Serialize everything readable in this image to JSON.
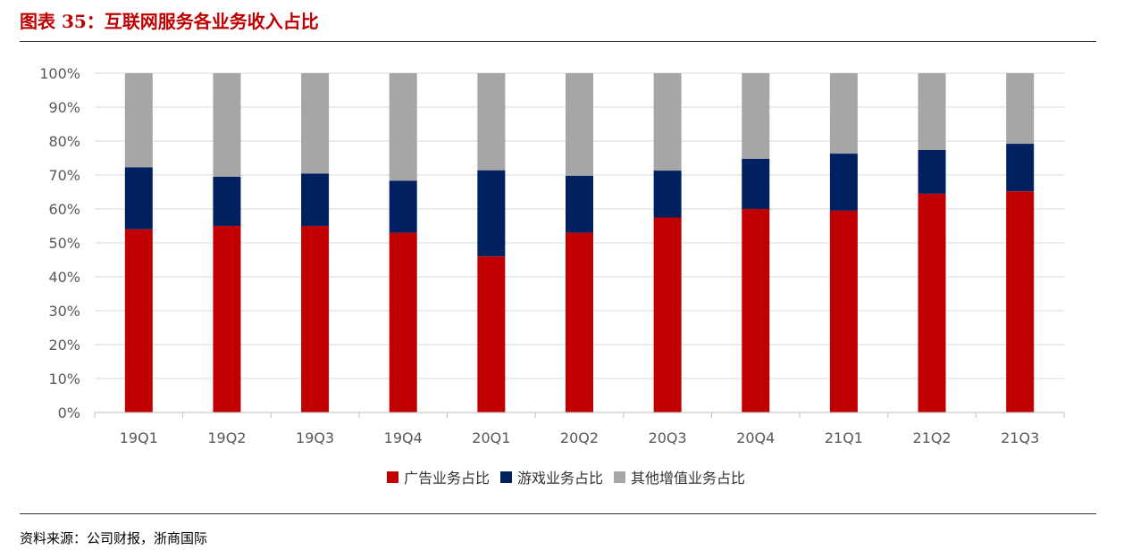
{
  "title": "图表 35：互联网服务各业务收入占比",
  "source": "资料来源：公司财报，浙商国际",
  "colors": {
    "ad": "#c00000",
    "game": "#002060",
    "other": "#a6a6a6",
    "grid": "#d9d9d9",
    "axis_text": "#595959"
  },
  "chart_data": {
    "type": "bar",
    "stacked": true,
    "categories": [
      "19Q1",
      "19Q2",
      "19Q3",
      "19Q4",
      "20Q1",
      "20Q2",
      "20Q3",
      "20Q4",
      "21Q1",
      "21Q2",
      "21Q3"
    ],
    "series": [
      {
        "name": "广告业务占比",
        "color": "#c00000",
        "values": [
          54,
          55,
          55,
          53,
          46,
          53,
          57.5,
          60,
          59.5,
          64.5,
          65.2
        ]
      },
      {
        "name": "游戏业务占比",
        "color": "#002060",
        "values": [
          18.3,
          14.5,
          15.4,
          15.3,
          25.4,
          16.8,
          13.8,
          14.8,
          16.8,
          12.9,
          14
        ]
      },
      {
        "name": "其他增值业务占比",
        "color": "#a6a6a6",
        "values": [
          27.7,
          30.5,
          29.6,
          31.7,
          28.6,
          30.2,
          28.7,
          25.2,
          23.7,
          22.6,
          20.8
        ]
      }
    ],
    "y_ticks": [
      "0%",
      "10%",
      "20%",
      "30%",
      "40%",
      "50%",
      "60%",
      "70%",
      "80%",
      "90%",
      "100%"
    ],
    "ylim": [
      0,
      100
    ],
    "grid": true,
    "legend_position": "bottom"
  }
}
